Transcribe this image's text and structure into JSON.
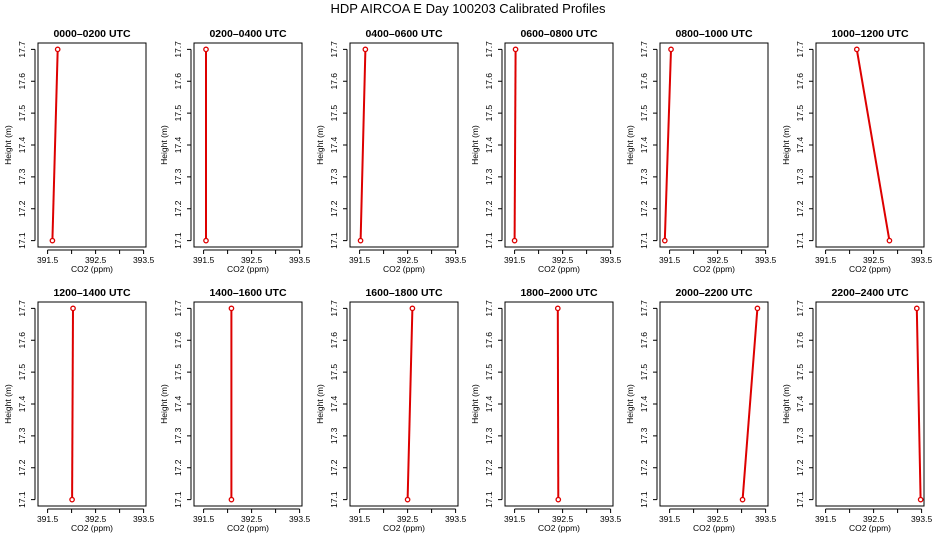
{
  "page": {
    "title": "HDP AIRCOA E  Day 100203  Calibrated Profiles"
  },
  "colors": {
    "series": "#dd0000",
    "axis": "#000000",
    "background": "#ffffff"
  },
  "chart_data": [
    {
      "type": "line",
      "title": "0000–0200 UTC",
      "xlabel": "CO2 (ppm)",
      "ylabel": "Height (m)",
      "xlim": [
        391.3,
        393.55
      ],
      "ylim": [
        17.08,
        17.72
      ],
      "xticks": [
        "391.5",
        "392.5",
        "393.5"
      ],
      "yticks": [
        "17.1",
        "17.2",
        "17.3",
        "17.4",
        "17.5",
        "17.6",
        "17.7"
      ],
      "series": [
        {
          "x": [
            391.6,
            391.71
          ],
          "y": [
            17.1,
            17.7
          ]
        }
      ]
    },
    {
      "type": "line",
      "title": "0200–0400 UTC",
      "xlabel": "CO2 (ppm)",
      "ylabel": "Height (m)",
      "xlim": [
        391.3,
        393.55
      ],
      "ylim": [
        17.08,
        17.72
      ],
      "xticks": [
        "391.5",
        "392.5",
        "393.5"
      ],
      "yticks": [
        "17.1",
        "17.2",
        "17.3",
        "17.4",
        "17.5",
        "17.6",
        "17.7"
      ],
      "series": [
        {
          "x": [
            391.55,
            391.55
          ],
          "y": [
            17.1,
            17.7
          ]
        }
      ]
    },
    {
      "type": "line",
      "title": "0400–0600 UTC",
      "xlabel": "CO2 (ppm)",
      "ylabel": "Height (m)",
      "xlim": [
        391.3,
        393.55
      ],
      "ylim": [
        17.08,
        17.72
      ],
      "xticks": [
        "391.5",
        "392.5",
        "393.5"
      ],
      "yticks": [
        "17.1",
        "17.2",
        "17.3",
        "17.4",
        "17.5",
        "17.6",
        "17.7"
      ],
      "series": [
        {
          "x": [
            391.52,
            391.62
          ],
          "y": [
            17.1,
            17.7
          ]
        }
      ]
    },
    {
      "type": "line",
      "title": "0600–0800 UTC",
      "xlabel": "CO2 (ppm)",
      "ylabel": "Height (m)",
      "xlim": [
        391.3,
        393.55
      ],
      "ylim": [
        17.08,
        17.72
      ],
      "xticks": [
        "391.5",
        "392.5",
        "393.5"
      ],
      "yticks": [
        "17.1",
        "17.2",
        "17.3",
        "17.4",
        "17.5",
        "17.6",
        "17.7"
      ],
      "series": [
        {
          "x": [
            391.5,
            391.52
          ],
          "y": [
            17.1,
            17.7
          ]
        }
      ]
    },
    {
      "type": "line",
      "title": "0800–1000 UTC",
      "xlabel": "CO2 (ppm)",
      "ylabel": "Height (m)",
      "xlim": [
        391.3,
        393.55
      ],
      "ylim": [
        17.08,
        17.72
      ],
      "xticks": [
        "391.5",
        "392.5",
        "393.5"
      ],
      "yticks": [
        "17.1",
        "17.2",
        "17.3",
        "17.4",
        "17.5",
        "17.6",
        "17.7"
      ],
      "series": [
        {
          "x": [
            391.4,
            391.53
          ],
          "y": [
            17.1,
            17.7
          ]
        }
      ]
    },
    {
      "type": "line",
      "title": "1000–1200 UTC",
      "xlabel": "CO2 (ppm)",
      "ylabel": "Height (m)",
      "xlim": [
        391.3,
        393.55
      ],
      "ylim": [
        17.08,
        17.72
      ],
      "xticks": [
        "391.5",
        "392.5",
        "393.5"
      ],
      "yticks": [
        "17.1",
        "17.2",
        "17.3",
        "17.4",
        "17.5",
        "17.6",
        "17.7"
      ],
      "series": [
        {
          "x": [
            392.83,
            392.15
          ],
          "y": [
            17.1,
            17.7
          ]
        }
      ]
    },
    {
      "type": "line",
      "title": "1200–1400 UTC",
      "xlabel": "CO2 (ppm)",
      "ylabel": "Height (m)",
      "xlim": [
        391.3,
        393.55
      ],
      "ylim": [
        17.08,
        17.72
      ],
      "xticks": [
        "391.5",
        "392.5",
        "393.5"
      ],
      "yticks": [
        "17.1",
        "17.2",
        "17.3",
        "17.4",
        "17.5",
        "17.6",
        "17.7"
      ],
      "series": [
        {
          "x": [
            392.01,
            392.03
          ],
          "y": [
            17.1,
            17.7
          ]
        }
      ]
    },
    {
      "type": "line",
      "title": "1400–1600 UTC",
      "xlabel": "CO2 (ppm)",
      "ylabel": "Height (m)",
      "xlim": [
        391.3,
        393.55
      ],
      "ylim": [
        17.08,
        17.72
      ],
      "xticks": [
        "391.5",
        "392.5",
        "393.5"
      ],
      "yticks": [
        "17.1",
        "17.2",
        "17.3",
        "17.4",
        "17.5",
        "17.6",
        "17.7"
      ],
      "series": [
        {
          "x": [
            392.08,
            392.08
          ],
          "y": [
            17.1,
            17.7
          ]
        }
      ]
    },
    {
      "type": "line",
      "title": "1600–1800 UTC",
      "xlabel": "CO2 (ppm)",
      "ylabel": "Height (m)",
      "xlim": [
        391.3,
        393.55
      ],
      "ylim": [
        17.08,
        17.72
      ],
      "xticks": [
        "391.5",
        "392.5",
        "393.5"
      ],
      "yticks": [
        "17.1",
        "17.2",
        "17.3",
        "17.4",
        "17.5",
        "17.6",
        "17.7"
      ],
      "series": [
        {
          "x": [
            392.5,
            392.6
          ],
          "y": [
            17.1,
            17.7
          ]
        }
      ]
    },
    {
      "type": "line",
      "title": "1800–2000 UTC",
      "xlabel": "CO2 (ppm)",
      "ylabel": "Height (m)",
      "xlim": [
        391.3,
        393.55
      ],
      "ylim": [
        17.08,
        17.72
      ],
      "xticks": [
        "391.5",
        "392.5",
        "393.5"
      ],
      "yticks": [
        "17.1",
        "17.2",
        "17.3",
        "17.4",
        "17.5",
        "17.6",
        "17.7"
      ],
      "series": [
        {
          "x": [
            392.41,
            392.4
          ],
          "y": [
            17.1,
            17.7
          ]
        }
      ]
    },
    {
      "type": "line",
      "title": "2000–2200 UTC",
      "xlabel": "CO2 (ppm)",
      "ylabel": "Height (m)",
      "xlim": [
        391.3,
        393.55
      ],
      "ylim": [
        17.08,
        17.72
      ],
      "xticks": [
        "391.5",
        "392.5",
        "393.5"
      ],
      "yticks": [
        "17.1",
        "17.2",
        "17.3",
        "17.4",
        "17.5",
        "17.6",
        "17.7"
      ],
      "series": [
        {
          "x": [
            393.02,
            393.33
          ],
          "y": [
            17.1,
            17.7
          ]
        }
      ]
    },
    {
      "type": "line",
      "title": "2200–2400 UTC",
      "xlabel": "CO2 (ppm)",
      "ylabel": "Height (m)",
      "xlim": [
        391.3,
        393.55
      ],
      "ylim": [
        17.08,
        17.72
      ],
      "xticks": [
        "391.5",
        "392.5",
        "393.5"
      ],
      "yticks": [
        "17.1",
        "17.2",
        "17.3",
        "17.4",
        "17.5",
        "17.6",
        "17.7"
      ],
      "series": [
        {
          "x": [
            393.48,
            393.4
          ],
          "y": [
            17.1,
            17.7
          ]
        }
      ]
    }
  ]
}
